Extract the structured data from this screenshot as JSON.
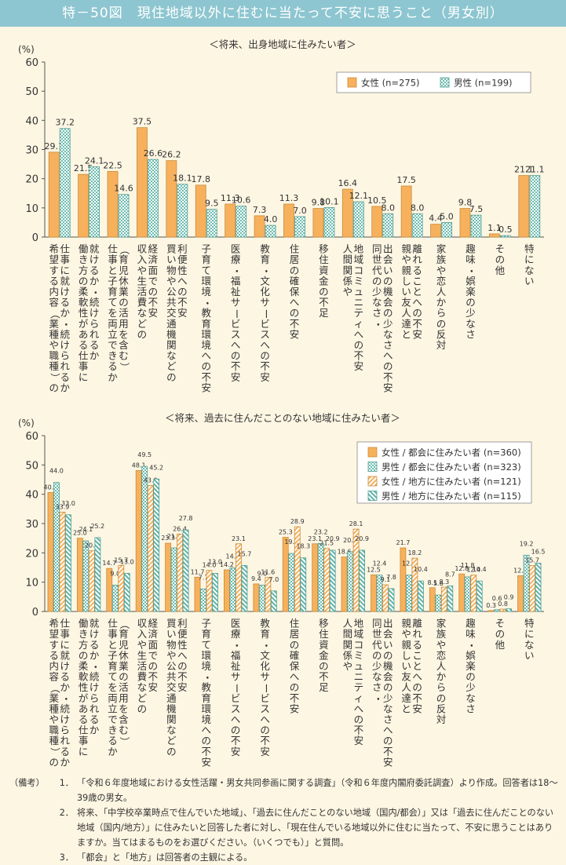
{
  "title": "特－50図　現住地域以外に住むに当たって不安に思うこと（男女別）",
  "colors": {
    "orange": "#f7b15c",
    "orange_stroke": "#c98a3a",
    "green": "#5fb3a8",
    "axis": "#666666",
    "grid_none": true
  },
  "chart_data": [
    {
      "type": "bar",
      "title": "＜将来、出身地域に住みたい者＞",
      "ylabel": "(%)",
      "ylim": [
        0,
        60
      ],
      "yticks": [
        "0",
        "10",
        "20",
        "30",
        "40",
        "50",
        "60"
      ],
      "legend_position": "top-right",
      "categories": [
        "仕事に就けるか・続けられるか希望する内容（業種や職種）の",
        "就けるか・続けられるか働き方の柔軟性がある仕事に",
        "（育児休業の活用を含む）仕事と子育てを両立できるか",
        "経済面での不安収入や生活費などの",
        "利便性への不安買い物や公共交通機関などの",
        "子育て環境・教育環境への不安",
        "医療・福祉サービスへの不安",
        "教育・文化サービスへの不安",
        "住居の確保への不安",
        "移住資金の不足",
        "地域コミュニティへの不安人間関係や",
        "出会いの機会の少なさへの不安同世代の少なさ・",
        "離れることへの不安親や親しい友人達と",
        "家族や恋人からの反対",
        "趣味・娯楽の少なさ",
        "その他",
        "特にない"
      ],
      "series": [
        {
          "name": "女性 (n=275)",
          "pattern": "solid-orange",
          "values": [
            29.1,
            21.5,
            22.5,
            37.5,
            26.2,
            17.8,
            11.3,
            7.3,
            11.3,
            9.8,
            16.4,
            10.5,
            17.5,
            4.4,
            9.8,
            1.1,
            21.1
          ],
          "labels": [
            "29.1",
            "21.5",
            "22.5",
            "37.5",
            "26.2",
            "17.8",
            "11.3",
            "7.3",
            "11.3",
            "9.8",
            "16.4",
            "10.5",
            "17.5",
            "4.4",
            "9.8",
            "1.1",
            "21.1"
          ]
        },
        {
          "name": "男性 (n=199)",
          "pattern": "checker-green",
          "values": [
            37.2,
            24.1,
            14.6,
            26.6,
            18.1,
            9.5,
            10.6,
            4.0,
            7.0,
            10.1,
            12.1,
            8.0,
            8.0,
            5.0,
            7.5,
            0.5,
            21.1
          ],
          "labels": [
            "37.2",
            "24.1",
            "14.6",
            "26.6",
            "18.1",
            "9.5",
            "10.6",
            "4.0",
            "7.0",
            "10.1",
            "12.1",
            "8.0",
            "8.0",
            "5.0",
            "7.5",
            "0.5",
            "21.1"
          ]
        }
      ]
    },
    {
      "type": "bar",
      "title": "＜将来、過去に住んだことのない地域に住みたい者＞",
      "ylabel": "(%)",
      "ylim": [
        0,
        60
      ],
      "yticks": [
        "0",
        "10",
        "20",
        "30",
        "40",
        "50",
        "60"
      ],
      "legend_position": "top-right",
      "categories": [
        "仕事に就けるか・続けられるか希望する内容（業種や職種）の",
        "就けるか・続けられるか働き方の柔軟性がある仕事に",
        "（育児休業の活用を含む）仕事と子育てを両立できるか",
        "経済面での不安収入や生活費などの",
        "利便性への不安買い物や公共交通機関などの",
        "子育て環境・教育環境への不安",
        "医療・福祉サービスへの不安",
        "教育・文化サービスへの不安",
        "住居の確保への不安",
        "移住資金の不足",
        "地域コミュニティへの不安人間関係や",
        "出会いの機会の少なさへの不安同世代の少なさ・",
        "離れることへの不安親や親しい友人達と",
        "家族や恋人からの反対",
        "趣味・娯楽の少なさ",
        "その他",
        "特にない"
      ],
      "series": [
        {
          "name": "女性 / 都会に住みたい者 (n=360)",
          "pattern": "solid-orange",
          "values": [
            40.6,
            25.0,
            14.7,
            48.1,
            23.3,
            11.7,
            14.2,
            9.4,
            25.3,
            23.1,
            18.6,
            12.5,
            21.7,
            8.1,
            12.8,
            0.3,
            12.2
          ],
          "labels": [
            "40.6",
            "25.0",
            "14.7",
            "48.1",
            "23.3",
            "11.7",
            "14.2",
            "9.4",
            "25.3",
            "23.1",
            "18.6",
            "12.5",
            "21.7",
            "8.1",
            "12.8",
            "0.3",
            "12.2"
          ]
        },
        {
          "name": "男性 / 都会に住みたい者 (n=323)",
          "pattern": "checker-green",
          "values": [
            44.0,
            24.1,
            9.0,
            49.5,
            21.7,
            7.7,
            14.9,
            9.0,
            19.8,
            23.2,
            20.4,
            12.4,
            12.4,
            5.6,
            11.8,
            0.6,
            19.2
          ],
          "labels": [
            "44.0",
            "24.1",
            "9.0",
            "49.5",
            "21.7",
            "7.7",
            "14.9",
            "9.0",
            "19.8",
            "23.2",
            "20.4",
            "12.4",
            "12.4",
            "5.6",
            "11.8",
            "0.6",
            "19.2"
          ]
        },
        {
          "name": "女性 / 地方に住みたい者 (n=121)",
          "pattern": "stripe-orange",
          "values": [
            33.9,
            20.7,
            15.7,
            43.0,
            26.4,
            14.0,
            23.1,
            11.6,
            28.9,
            21.5,
            28.1,
            9.1,
            18.2,
            8.3,
            12.4,
            0.8,
            15.7
          ],
          "labels": [
            "33.9",
            "20.7",
            "15.7",
            "43.0",
            "26.4",
            "14.0",
            "23.1",
            "11.6",
            "28.9",
            "21.5",
            "28.1",
            "9.1",
            "18.2",
            "8.3",
            "12.4",
            "0.8",
            "15.7"
          ]
        },
        {
          "name": "男性 / 地方に住みたい者 (n=115)",
          "pattern": "stripe-green",
          "values": [
            33.0,
            25.2,
            13.0,
            45.2,
            27.8,
            13.0,
            15.7,
            7.0,
            18.3,
            20.9,
            20.9,
            7.8,
            10.4,
            8.7,
            10.4,
            0.9,
            16.5
          ],
          "labels": [
            "33.0",
            "25.2",
            "13.0",
            "45.2",
            "27.8",
            "13.0",
            "15.7",
            "7.0",
            "18.3",
            "20.9",
            "20.9",
            "7.8",
            "10.4",
            "8.7",
            "10.4",
            "0.9",
            "16.5"
          ]
        }
      ]
    }
  ],
  "notes": {
    "lead": "（備考）",
    "items": [
      {
        "num": "1．",
        "text": "「令和６年度地域における女性活躍・男女共同参画に関する調査」（令和６年度内閣府委託調査）より作成。回答者は18～39歳の男女。"
      },
      {
        "num": "2．",
        "text": "将来、「中学校卒業時点で住んでいた地域」、「過去に住んだことのない地域（国内/都会）」又は「過去に住んだことのない地域（国内/地方）」に住みたいと回答した者に対し、「現在住んでいる地域以外に住むに当たって、不安に思うことはありますか。当てはまるものをお選びください。（いくつでも）」と質問。"
      },
      {
        "num": "3．",
        "text": "「都会」と「地方」は回答者の主観による。"
      }
    ]
  }
}
